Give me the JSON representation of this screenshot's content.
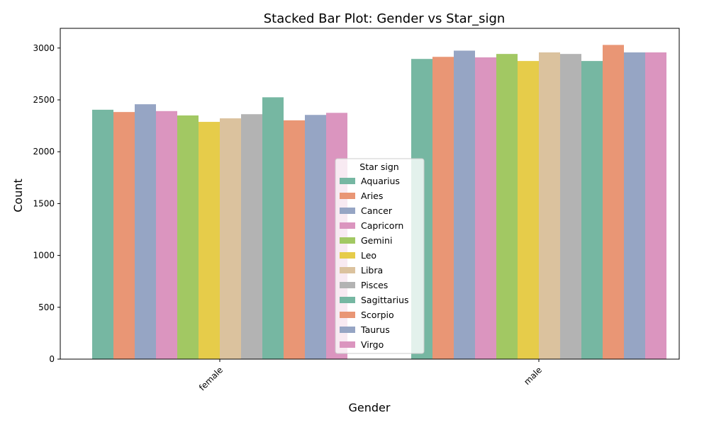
{
  "chart_data": {
    "type": "bar",
    "title": "Stacked Bar Plot: Gender vs Star_sign",
    "xlabel": "Gender",
    "ylabel": "Count",
    "categories": [
      "female",
      "male"
    ],
    "ylim": [
      0,
      3190
    ],
    "yticks": [
      0,
      500,
      1000,
      1500,
      2000,
      2500,
      3000
    ],
    "grid": false,
    "legend": {
      "title": "Star sign",
      "placement": "center-bottom"
    },
    "series": [
      {
        "name": "Aquarius",
        "color": "#76b7a2",
        "values": [
          2405,
          2895
        ]
      },
      {
        "name": "Aries",
        "color": "#e99675",
        "values": [
          2383,
          2915
        ]
      },
      {
        "name": "Cancer",
        "color": "#96a5c4",
        "values": [
          2458,
          2975
        ]
      },
      {
        "name": "Capricorn",
        "color": "#db95bf",
        "values": [
          2392,
          2910
        ]
      },
      {
        "name": "Gemini",
        "color": "#a2c863",
        "values": [
          2350,
          2943
        ]
      },
      {
        "name": "Leo",
        "color": "#e6cc4a",
        "values": [
          2288,
          2875
        ]
      },
      {
        "name": "Libra",
        "color": "#dbc29e",
        "values": [
          2322,
          2958
        ]
      },
      {
        "name": "Pisces",
        "color": "#b3b3b3",
        "values": [
          2362,
          2943
        ]
      },
      {
        "name": "Sagittarius",
        "color": "#76b7a2",
        "values": [
          2525,
          2875
        ]
      },
      {
        "name": "Scorpio",
        "color": "#e99675",
        "values": [
          2303,
          3030
        ]
      },
      {
        "name": "Taurus",
        "color": "#96a5c4",
        "values": [
          2355,
          2958
        ]
      },
      {
        "name": "Virgo",
        "color": "#db95bf",
        "values": [
          2375,
          2958
        ]
      }
    ]
  }
}
